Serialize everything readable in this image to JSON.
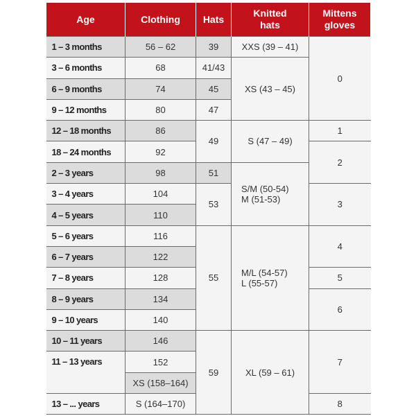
{
  "colors": {
    "header": "#c2121c",
    "shade": "#dcdcdc",
    "cell": "#f4f4f4"
  },
  "headers": [
    "Age",
    "Clothing",
    "Hats",
    "Knitted\nhats",
    "Mittens\ngloves"
  ],
  "age": [
    {
      "label": "1 – 3 months",
      "span": 1,
      "shaded": true
    },
    {
      "label": "3 – 6 months",
      "span": 1,
      "shaded": false
    },
    {
      "label": "6 – 9 months",
      "span": 1,
      "shaded": true
    },
    {
      "label": "9 – 12 months",
      "span": 1,
      "shaded": false
    },
    {
      "label": "12 – 18 months",
      "span": 1,
      "shaded": true
    },
    {
      "label": "18 – 24 months",
      "span": 1,
      "shaded": false
    },
    {
      "label": "2 – 3 years",
      "span": 1,
      "shaded": true
    },
    {
      "label": "3 – 4 years",
      "span": 1,
      "shaded": false
    },
    {
      "label": "4 – 5 years",
      "span": 1,
      "shaded": true
    },
    {
      "label": "5 – 6 years",
      "span": 1,
      "shaded": false
    },
    {
      "label": "6 – 7 years",
      "span": 1,
      "shaded": true
    },
    {
      "label": "7 – 8 years",
      "span": 1,
      "shaded": false
    },
    {
      "label": "8 – 9 years",
      "span": 1,
      "shaded": true
    },
    {
      "label": "9 – 10 years",
      "span": 1,
      "shaded": false
    },
    {
      "label": "10 – 11 years",
      "span": 1,
      "shaded": true
    },
    {
      "label": "11 – 13 years",
      "span": 2,
      "shaded": false
    },
    {
      "label": "13 – ... years",
      "span": 1,
      "shaded": false
    }
  ],
  "clothing": [
    {
      "label": "56 – 62",
      "span": 1,
      "shaded": true
    },
    {
      "label": "68",
      "span": 1,
      "shaded": false
    },
    {
      "label": "74",
      "span": 1,
      "shaded": true
    },
    {
      "label": "80",
      "span": 1,
      "shaded": false
    },
    {
      "label": "86",
      "span": 1,
      "shaded": true
    },
    {
      "label": "92",
      "span": 1,
      "shaded": false
    },
    {
      "label": "98",
      "span": 1,
      "shaded": true
    },
    {
      "label": "104",
      "span": 1,
      "shaded": false
    },
    {
      "label": "110",
      "span": 1,
      "shaded": true
    },
    {
      "label": "116",
      "span": 1,
      "shaded": false
    },
    {
      "label": "122",
      "span": 1,
      "shaded": true
    },
    {
      "label": "128",
      "span": 1,
      "shaded": false
    },
    {
      "label": "134",
      "span": 1,
      "shaded": true
    },
    {
      "label": "140",
      "span": 1,
      "shaded": false
    },
    {
      "label": "146",
      "span": 1,
      "shaded": true
    },
    {
      "label": "152",
      "span": 1,
      "shaded": false
    },
    {
      "label": "XS (158–164)",
      "span": 1,
      "shaded": true
    },
    {
      "label": "S (164–170)",
      "span": 1,
      "shaded": false
    }
  ],
  "hats": [
    {
      "label": "39",
      "span": 1,
      "shaded": true
    },
    {
      "label": "41/43",
      "span": 1,
      "shaded": false
    },
    {
      "label": "45",
      "span": 1,
      "shaded": true
    },
    {
      "label": "47",
      "span": 1,
      "shaded": false
    },
    {
      "label": "49",
      "span": 2,
      "shaded": false
    },
    {
      "label": "51",
      "span": 1,
      "shaded": true
    },
    {
      "label": "53",
      "span": 2,
      "shaded": false
    },
    {
      "label": "55",
      "span": 5,
      "shaded": false
    },
    {
      "label": "59",
      "span": 4,
      "shaded": false
    }
  ],
  "knitted_hats": [
    {
      "label": "XXS (39 – 41)",
      "span": 1,
      "shaded": false
    },
    {
      "label": "XS (43 – 45)",
      "span": 3,
      "shaded": false
    },
    {
      "label": "S (47 – 49)",
      "span": 2,
      "shaded": false
    },
    {
      "label": "S/M (50-54)\nM (51-53)",
      "span": 3,
      "shaded": false,
      "left": true
    },
    {
      "label": "M/L (54-57)\nL (55-57)",
      "span": 5,
      "shaded": false,
      "left": true
    },
    {
      "label": "XL (59 – 61)",
      "span": 4,
      "shaded": false
    }
  ],
  "mittens_gloves": [
    {
      "label": "0",
      "span": 4,
      "shaded": false
    },
    {
      "label": "1",
      "span": 1,
      "shaded": false
    },
    {
      "label": "2",
      "span": 2,
      "shaded": false
    },
    {
      "label": "3",
      "span": 2,
      "shaded": false
    },
    {
      "label": "4",
      "span": 2,
      "shaded": false
    },
    {
      "label": "5",
      "span": 1,
      "shaded": false
    },
    {
      "label": "6",
      "span": 2,
      "shaded": false
    },
    {
      "label": "7",
      "span": 3,
      "shaded": false
    },
    {
      "label": "8",
      "span": 1,
      "shaded": false
    }
  ]
}
